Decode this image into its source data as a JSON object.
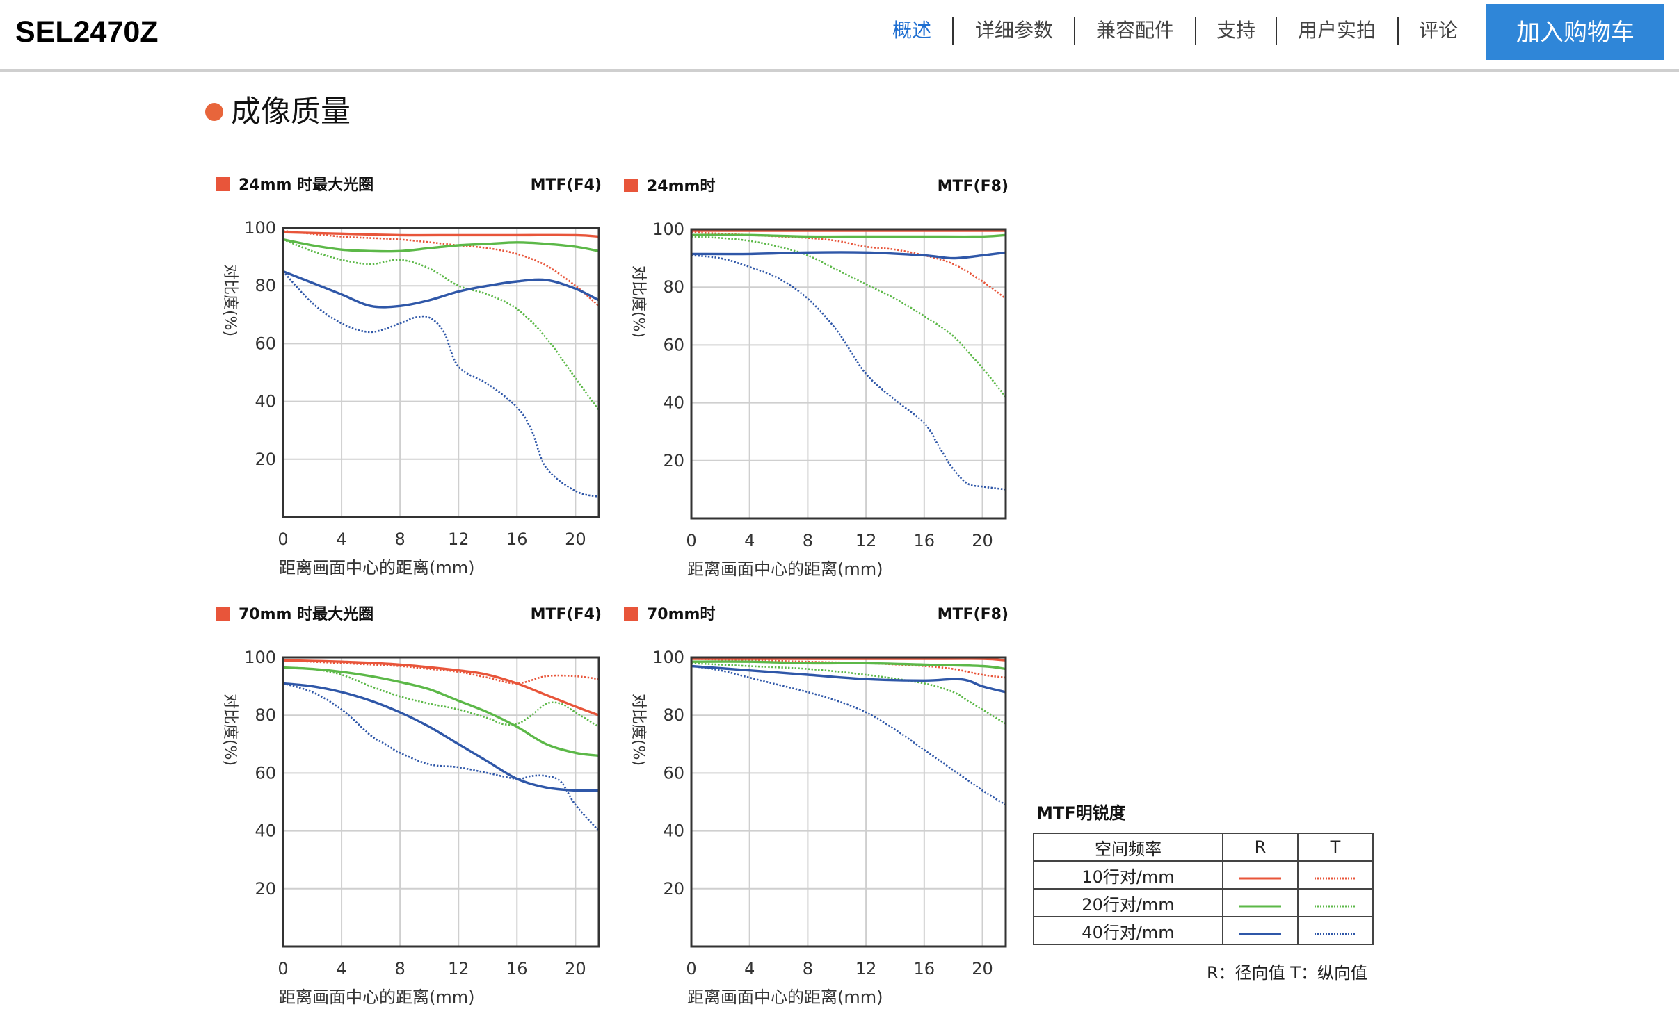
{
  "header": {
    "product_name": "SEL2470Z",
    "nav": [
      {
        "label": "概述",
        "active": true
      },
      {
        "label": "详细参数",
        "active": false
      },
      {
        "label": "兼容配件",
        "active": false
      },
      {
        "label": "支持",
        "active": false
      },
      {
        "label": "用户实拍",
        "active": false
      },
      {
        "label": "评论",
        "active": false
      }
    ],
    "cart_label": "加入购物车"
  },
  "section": {
    "title": "成像质量",
    "accent_color": "#e8653b"
  },
  "colors": {
    "r10": "#e8553a",
    "r20": "#5cb848",
    "r40": "#2f57a8",
    "grid": "#cfcfcf",
    "nav_active": "#1f6fd1",
    "cart_bg": "#2f86d8"
  },
  "chart_data": [
    {
      "type": "line",
      "title": "24mm 时最大光圈",
      "subtitle": "MTF(F4)",
      "xlabel": "距离画面中心的距离(mm)",
      "ylabel": "对比度(%)",
      "xlim": [
        0,
        21.6
      ],
      "ylim": [
        0,
        100
      ],
      "xticks": [
        0,
        4,
        8,
        12,
        16,
        20
      ],
      "yticks": [
        20,
        40,
        60,
        80,
        100
      ],
      "grid": true,
      "series": [
        {
          "name": "10行对/mm R",
          "style": "solid",
          "color": "#e8553a",
          "x": [
            0,
            4,
            8,
            12,
            16,
            20,
            21.6
          ],
          "y": [
            98.5,
            98,
            97.5,
            97.5,
            97.5,
            97.5,
            97
          ]
        },
        {
          "name": "10行对/mm T",
          "style": "dotted",
          "color": "#e8553a",
          "x": [
            0,
            4,
            8,
            12,
            14,
            16,
            18,
            20,
            21.6
          ],
          "y": [
            99,
            97,
            96,
            94,
            93,
            91,
            87,
            80,
            73
          ]
        },
        {
          "name": "20行对/mm R",
          "style": "solid",
          "color": "#5cb848",
          "x": [
            0,
            2,
            4,
            6,
            8,
            10,
            12,
            14,
            16,
            18,
            20,
            21.6
          ],
          "y": [
            96,
            94,
            92.5,
            92,
            92,
            93,
            94,
            94.5,
            95,
            94.5,
            93.5,
            92
          ]
        },
        {
          "name": "20行对/mm T",
          "style": "dotted",
          "color": "#5cb848",
          "x": [
            0,
            2,
            4,
            6,
            8,
            10,
            12,
            14,
            16,
            18,
            20,
            21.6
          ],
          "y": [
            96,
            92,
            89,
            87.5,
            89,
            86,
            80,
            77,
            72,
            62,
            48,
            37
          ]
        },
        {
          "name": "40行对/mm R",
          "style": "solid",
          "color": "#2f57a8",
          "x": [
            0,
            2,
            4,
            6,
            8,
            10,
            12,
            14,
            16,
            18,
            20,
            21.6
          ],
          "y": [
            85,
            81,
            77,
            73,
            73,
            75,
            78,
            80,
            81.5,
            82,
            79,
            75
          ]
        },
        {
          "name": "40行对/mm T",
          "style": "dotted",
          "color": "#2f57a8",
          "x": [
            0,
            2,
            4,
            6,
            8,
            9,
            10,
            11,
            12,
            14,
            16,
            17,
            18,
            20,
            21.6
          ],
          "y": [
            85,
            74,
            67,
            64,
            67,
            69,
            69,
            64,
            52,
            46,
            38,
            30,
            17,
            9,
            7
          ]
        }
      ]
    },
    {
      "type": "line",
      "title": "24mm时",
      "subtitle": "MTF(F8)",
      "xlabel": "距离画面中心的距离(mm)",
      "ylabel": "对比度(%)",
      "xlim": [
        0,
        21.6
      ],
      "ylim": [
        0,
        100
      ],
      "xticks": [
        0,
        4,
        8,
        12,
        16,
        20
      ],
      "yticks": [
        20,
        40,
        60,
        80,
        100
      ],
      "grid": true,
      "series": [
        {
          "name": "10行对/mm R",
          "style": "solid",
          "color": "#e8553a",
          "x": [
            0,
            4,
            8,
            12,
            16,
            20,
            21.6
          ],
          "y": [
            99.5,
            99.5,
            99.5,
            99.5,
            99.5,
            99.5,
            99.5
          ]
        },
        {
          "name": "10行对/mm T",
          "style": "dotted",
          "color": "#e8553a",
          "x": [
            0,
            4,
            8,
            10,
            12,
            14,
            16,
            18,
            20,
            21.6
          ],
          "y": [
            99,
            98,
            97,
            96,
            94,
            93,
            91,
            88,
            82,
            76
          ]
        },
        {
          "name": "20行对/mm R",
          "style": "solid",
          "color": "#5cb848",
          "x": [
            0,
            4,
            8,
            12,
            16,
            20,
            21.6
          ],
          "y": [
            98,
            98,
            97.5,
            97.5,
            97.5,
            97.5,
            98
          ]
        },
        {
          "name": "20行对/mm T",
          "style": "dotted",
          "color": "#5cb848",
          "x": [
            0,
            2,
            4,
            6,
            8,
            10,
            12,
            14,
            16,
            18,
            20,
            21.6
          ],
          "y": [
            97.5,
            97,
            96,
            94,
            91,
            86,
            81,
            76,
            70,
            63,
            52,
            42
          ]
        },
        {
          "name": "40行对/mm R",
          "style": "solid",
          "color": "#2f57a8",
          "x": [
            0,
            4,
            8,
            12,
            16,
            18,
            20,
            21.6
          ],
          "y": [
            91.5,
            91.5,
            92,
            92,
            91,
            90,
            91,
            92
          ]
        },
        {
          "name": "40行对/mm T",
          "style": "dotted",
          "color": "#2f57a8",
          "x": [
            0,
            2,
            4,
            6,
            8,
            10,
            12,
            14,
            16,
            17,
            18,
            19,
            20,
            21.6
          ],
          "y": [
            91,
            90,
            87,
            83,
            76,
            65,
            50,
            41,
            33,
            25,
            17,
            12,
            11,
            10
          ]
        }
      ]
    },
    {
      "type": "line",
      "title": "70mm 时最大光圈",
      "subtitle": "MTF(F4)",
      "xlabel": "距离画面中心的距离(mm)",
      "ylabel": "对比度(%)",
      "xlim": [
        0,
        21.6
      ],
      "ylim": [
        0,
        100
      ],
      "xticks": [
        0,
        4,
        8,
        12,
        16,
        20
      ],
      "yticks": [
        20,
        40,
        60,
        80,
        100
      ],
      "grid": true,
      "series": [
        {
          "name": "10行对/mm R",
          "style": "solid",
          "color": "#e8553a",
          "x": [
            0,
            4,
            8,
            12,
            14,
            16,
            18,
            20,
            21.6
          ],
          "y": [
            99,
            98.5,
            97.5,
            95.5,
            94,
            91,
            87,
            83,
            80
          ]
        },
        {
          "name": "10行对/mm T",
          "style": "dotted",
          "color": "#e8553a",
          "x": [
            0,
            4,
            8,
            10,
            12,
            14,
            16,
            18,
            20,
            21.6
          ],
          "y": [
            99,
            98,
            97,
            96,
            95,
            93,
            91,
            93.5,
            93.5,
            92.5
          ]
        },
        {
          "name": "20行对/mm R",
          "style": "solid",
          "color": "#5cb848",
          "x": [
            0,
            2,
            4,
            6,
            8,
            10,
            12,
            14,
            16,
            18,
            20,
            21.6
          ],
          "y": [
            96.5,
            96,
            95,
            93.5,
            91.5,
            89,
            85,
            81,
            76,
            70,
            67,
            66
          ]
        },
        {
          "name": "20行对/mm T",
          "style": "dotted",
          "color": "#5cb848",
          "x": [
            0,
            2,
            4,
            6,
            8,
            10,
            12,
            14,
            15,
            16,
            17,
            18,
            19,
            20,
            21.6
          ],
          "y": [
            96.5,
            96,
            94,
            90,
            86.5,
            84,
            82,
            79,
            77,
            77,
            80,
            84,
            84,
            81,
            76
          ]
        },
        {
          "name": "40行对/mm R",
          "style": "solid",
          "color": "#2f57a8",
          "x": [
            0,
            2,
            4,
            6,
            8,
            10,
            12,
            14,
            16,
            18,
            20,
            21.6
          ],
          "y": [
            91,
            90,
            88,
            85,
            81,
            76,
            70,
            64,
            58,
            55,
            54,
            54
          ]
        },
        {
          "name": "40行对/mm T",
          "style": "dotted",
          "color": "#2f57a8",
          "x": [
            0,
            2,
            4,
            6,
            7,
            8,
            10,
            12,
            14,
            16,
            17,
            18,
            19,
            20,
            21.6
          ],
          "y": [
            91,
            88,
            82,
            73,
            70,
            67,
            63,
            62,
            60,
            58,
            59,
            59,
            57,
            49,
            40
          ]
        }
      ]
    },
    {
      "type": "line",
      "title": "70mm时",
      "subtitle": "MTF(F8)",
      "xlabel": "距离画面中心的距离(mm)",
      "ylabel": "对比度(%)",
      "xlim": [
        0,
        21.6
      ],
      "ylim": [
        0,
        100
      ],
      "xticks": [
        0,
        4,
        8,
        12,
        16,
        20
      ],
      "yticks": [
        20,
        40,
        60,
        80,
        100
      ],
      "grid": true,
      "series": [
        {
          "name": "10行对/mm R",
          "style": "solid",
          "color": "#e8553a",
          "x": [
            0,
            4,
            8,
            12,
            16,
            20,
            21.6
          ],
          "y": [
            99.5,
            99.5,
            99.5,
            99.5,
            99.5,
            99.5,
            99
          ]
        },
        {
          "name": "10行对/mm T",
          "style": "dotted",
          "color": "#e8553a",
          "x": [
            0,
            4,
            8,
            12,
            16,
            18,
            20,
            21.6
          ],
          "y": [
            99.5,
            99,
            98.5,
            98,
            97,
            96,
            94,
            93
          ]
        },
        {
          "name": "20行对/mm R",
          "style": "solid",
          "color": "#5cb848",
          "x": [
            0,
            4,
            8,
            12,
            16,
            20,
            21.6
          ],
          "y": [
            98.5,
            98.5,
            98,
            98,
            97.5,
            97,
            96
          ]
        },
        {
          "name": "20行对/mm T",
          "style": "dotted",
          "color": "#5cb848",
          "x": [
            0,
            4,
            8,
            12,
            16,
            18,
            19,
            20,
            21.6
          ],
          "y": [
            98,
            97,
            96,
            94,
            91,
            88,
            85,
            82,
            77
          ]
        },
        {
          "name": "40行对/mm R",
          "style": "solid",
          "color": "#2f57a8",
          "x": [
            0,
            4,
            8,
            12,
            16,
            18,
            19,
            20,
            21.6
          ],
          "y": [
            97,
            95.5,
            94,
            92.5,
            92,
            92.5,
            92,
            90,
            88
          ]
        },
        {
          "name": "40行对/mm T",
          "style": "dotted",
          "color": "#2f57a8",
          "x": [
            0,
            2,
            4,
            6,
            8,
            10,
            12,
            14,
            16,
            18,
            20,
            21.6
          ],
          "y": [
            97,
            95.5,
            93,
            90.5,
            88,
            85,
            81,
            75,
            68,
            61,
            54,
            49
          ]
        }
      ]
    }
  ],
  "legend": {
    "title": "MTF明锐度",
    "header": [
      "空间频率",
      "R",
      "T"
    ],
    "rows": [
      {
        "label": "10行对/mm",
        "color": "#e8553a"
      },
      {
        "label": "20行对/mm",
        "color": "#5cb848"
      },
      {
        "label": "40行对/mm",
        "color": "#2f57a8"
      }
    ],
    "note": "R：径向值  T：纵向值"
  }
}
